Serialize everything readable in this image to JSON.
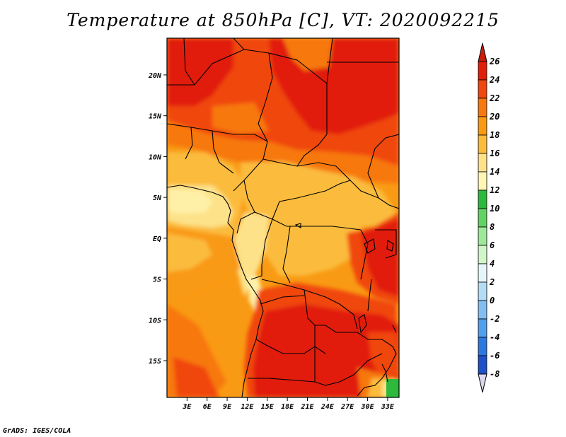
{
  "title": "Temperature at 850hPa [C], VT: 2020092215",
  "credit": "GrADS: IGES/COLA",
  "map": {
    "lat_range": [
      -19.5,
      24.5
    ],
    "lon_range": [
      0,
      34.7
    ],
    "lat_ticks": [
      {
        "value": 20,
        "label": "20N"
      },
      {
        "value": 15,
        "label": "15N"
      },
      {
        "value": 10,
        "label": "10N"
      },
      {
        "value": 5,
        "label": "5N"
      },
      {
        "value": 0,
        "label": "EQ"
      },
      {
        "value": -5,
        "label": "5S"
      },
      {
        "value": -10,
        "label": "10S"
      },
      {
        "value": -15,
        "label": "15S"
      }
    ],
    "lon_ticks": [
      {
        "value": 3,
        "label": "3E"
      },
      {
        "value": 6,
        "label": "6E"
      },
      {
        "value": 9,
        "label": "9E"
      },
      {
        "value": 12,
        "label": "12E"
      },
      {
        "value": 15,
        "label": "15E"
      },
      {
        "value": 18,
        "label": "18E"
      },
      {
        "value": 21,
        "label": "21E"
      },
      {
        "value": 24,
        "label": "24E"
      },
      {
        "value": 27,
        "label": "27E"
      },
      {
        "value": 30,
        "label": "30E"
      },
      {
        "value": 33,
        "label": "33E"
      }
    ]
  },
  "colorbar": {
    "levels": [
      {
        "label": "26",
        "color": "#e11e0a"
      },
      {
        "label": "24",
        "color": "#f0460f"
      },
      {
        "label": "22",
        "color": "#f7780f"
      },
      {
        "label": "20",
        "color": "#f99a14"
      },
      {
        "label": "18",
        "color": "#fbbc3c"
      },
      {
        "label": "16",
        "color": "#fde28a"
      },
      {
        "label": "14",
        "color": "#fff6b4"
      },
      {
        "label": "12",
        "color": "#2eb83c"
      },
      {
        "label": "10",
        "color": "#62d362"
      },
      {
        "label": "8",
        "color": "#9ee89a"
      },
      {
        "label": "6",
        "color": "#d0f5c8"
      },
      {
        "label": "4",
        "color": "#e6f5fa"
      },
      {
        "label": "2",
        "color": "#b4dcf5"
      },
      {
        "label": "0",
        "color": "#82bef0"
      },
      {
        "label": "-2",
        "color": "#50a0ec"
      },
      {
        "label": "-4",
        "color": "#2d78dc"
      },
      {
        "label": "-6",
        "color": "#1e50c8"
      },
      {
        "label": "-8",
        "color": "#0a2896"
      }
    ],
    "over_color": "#c81e0a",
    "under_color": "#ddd8f0"
  }
}
